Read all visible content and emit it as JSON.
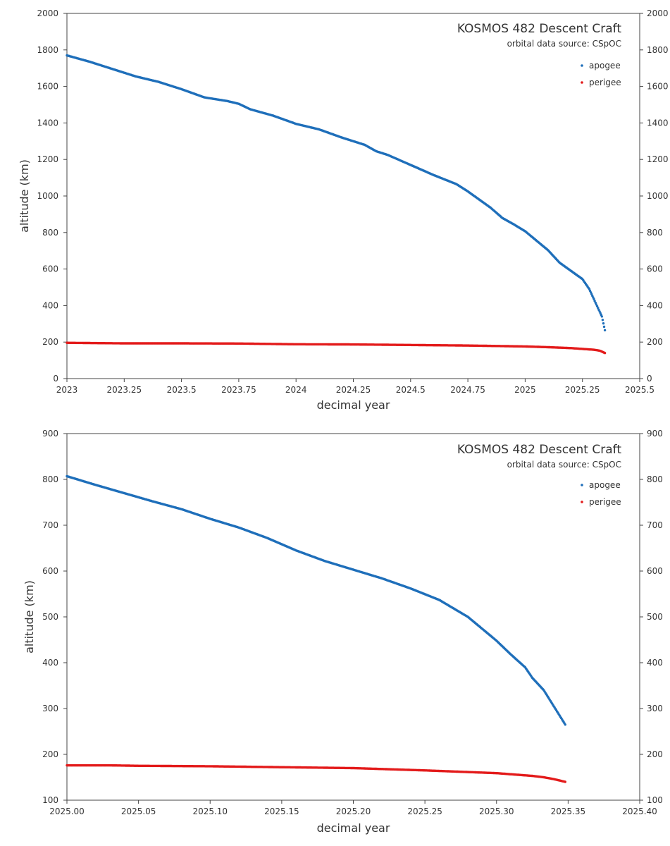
{
  "chart_data": [
    {
      "type": "scatter",
      "title": "KOSMOS 482 Descent Craft",
      "subtitle": "orbital data source:  CSpOC",
      "xlabel": "decimal year",
      "ylabel": "altitude (km)",
      "xlim": [
        2023,
        2025.5
      ],
      "ylim": [
        0,
        2000
      ],
      "x_ticks": [
        "2023",
        "2023.25",
        "2023.5",
        "2023.75",
        "2024",
        "2024.25",
        "2024.5",
        "2024.75",
        "2025",
        "2025.25",
        "2025.5"
      ],
      "y_ticks": [
        "0",
        "200",
        "400",
        "600",
        "800",
        "1000",
        "1200",
        "1400",
        "1600",
        "1800",
        "2000"
      ],
      "grid": false,
      "legend_position": "top-right",
      "series": [
        {
          "name": "apogee",
          "color": "#1f6fba",
          "points": [
            [
              2023.0,
              1770
            ],
            [
              2023.1,
              1735
            ],
            [
              2023.2,
              1695
            ],
            [
              2023.3,
              1655
            ],
            [
              2023.4,
              1625
            ],
            [
              2023.5,
              1585
            ],
            [
              2023.6,
              1540
            ],
            [
              2023.7,
              1520
            ],
            [
              2023.75,
              1505
            ],
            [
              2023.8,
              1475
            ],
            [
              2023.9,
              1440
            ],
            [
              2024.0,
              1395
            ],
            [
              2024.1,
              1365
            ],
            [
              2024.2,
              1320
            ],
            [
              2024.3,
              1280
            ],
            [
              2024.35,
              1245
            ],
            [
              2024.4,
              1225
            ],
            [
              2024.5,
              1170
            ],
            [
              2024.6,
              1115
            ],
            [
              2024.7,
              1065
            ],
            [
              2024.75,
              1025
            ],
            [
              2024.8,
              980
            ],
            [
              2024.85,
              935
            ],
            [
              2024.9,
              880
            ],
            [
              2024.95,
              845
            ],
            [
              2025.0,
              807
            ],
            [
              2025.05,
              755
            ],
            [
              2025.1,
              703
            ],
            [
              2025.15,
              635
            ],
            [
              2025.2,
              590
            ],
            [
              2025.25,
              545
            ],
            [
              2025.28,
              490
            ],
            [
              2025.3,
              435
            ],
            [
              2025.325,
              367
            ],
            [
              2025.335,
              340
            ],
            [
              2025.348,
              265
            ]
          ]
        },
        {
          "name": "perigee",
          "color": "#e31b1b",
          "points": [
            [
              2023.0,
              196
            ],
            [
              2023.25,
              193
            ],
            [
              2023.5,
              193
            ],
            [
              2023.75,
              192
            ],
            [
              2024.0,
              188
            ],
            [
              2024.25,
              187
            ],
            [
              2024.5,
              184
            ],
            [
              2024.75,
              181
            ],
            [
              2025.0,
              176
            ],
            [
              2025.1,
              172
            ],
            [
              2025.2,
              167
            ],
            [
              2025.3,
              158
            ],
            [
              2025.325,
              153
            ],
            [
              2025.335,
              148
            ],
            [
              2025.348,
              140
            ]
          ]
        }
      ]
    },
    {
      "type": "scatter",
      "title": "KOSMOS 482 Descent Craft",
      "subtitle": "orbital data source:  CSpOC",
      "xlabel": "decimal year",
      "ylabel": "altitude (km)",
      "xlim": [
        2025.0,
        2025.4
      ],
      "ylim": [
        100,
        900
      ],
      "x_ticks": [
        "2025.00",
        "2025.05",
        "2025.10",
        "2025.15",
        "2025.20",
        "2025.25",
        "2025.30",
        "2025.35",
        "2025.40"
      ],
      "y_ticks": [
        "100",
        "200",
        "300",
        "400",
        "500",
        "600",
        "700",
        "800",
        "900"
      ],
      "grid": false,
      "legend_position": "top-right",
      "series": [
        {
          "name": "apogee",
          "color": "#1f6fba",
          "points": [
            [
              2025.0,
              807
            ],
            [
              2025.02,
              788
            ],
            [
              2025.04,
              770
            ],
            [
              2025.06,
              752
            ],
            [
              2025.08,
              735
            ],
            [
              2025.1,
              714
            ],
            [
              2025.12,
              695
            ],
            [
              2025.14,
              672
            ],
            [
              2025.16,
              645
            ],
            [
              2025.18,
              622
            ],
            [
              2025.2,
              603
            ],
            [
              2025.22,
              584
            ],
            [
              2025.24,
              562
            ],
            [
              2025.26,
              537
            ],
            [
              2025.28,
              500
            ],
            [
              2025.3,
              448
            ],
            [
              2025.31,
              418
            ],
            [
              2025.32,
              390
            ],
            [
              2025.325,
              367
            ],
            [
              2025.333,
              340
            ],
            [
              2025.34,
              305
            ],
            [
              2025.348,
              265
            ]
          ]
        },
        {
          "name": "perigee",
          "color": "#e31b1b",
          "points": [
            [
              2025.0,
              176
            ],
            [
              2025.03,
              176
            ],
            [
              2025.05,
              175
            ],
            [
              2025.1,
              174
            ],
            [
              2025.15,
              172
            ],
            [
              2025.2,
              170
            ],
            [
              2025.25,
              165
            ],
            [
              2025.3,
              159
            ],
            [
              2025.325,
              153
            ],
            [
              2025.333,
              150
            ],
            [
              2025.34,
              146
            ],
            [
              2025.348,
              140
            ]
          ]
        }
      ]
    }
  ]
}
